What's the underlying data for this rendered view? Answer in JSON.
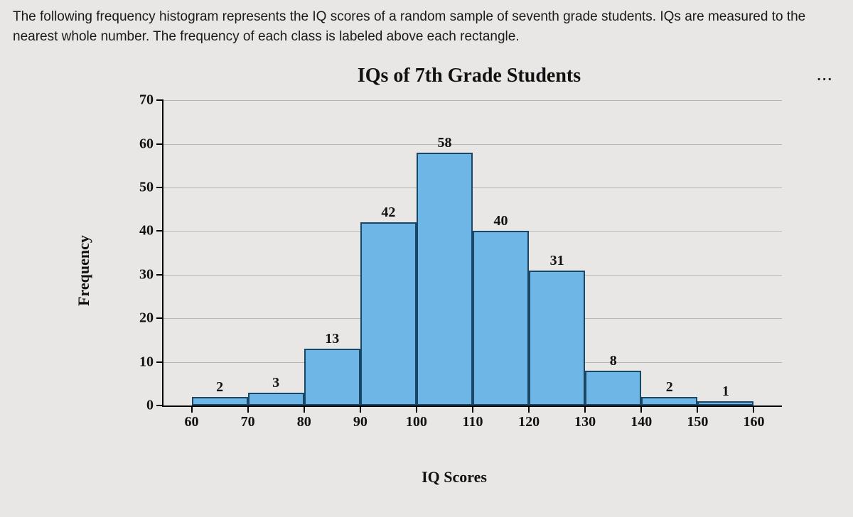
{
  "prompt": "The following frequency histogram represents the IQ scores of a random sample of seventh grade students. IQs are measured to the nearest whole number. The frequency of each class is labeled above each rectangle.",
  "ellipsis": "...",
  "chart": {
    "type": "histogram",
    "title": "IQs of 7th Grade Students",
    "title_fontsize": 28,
    "title_font": "serif-bold",
    "xlabel": "IQ Scores",
    "ylabel": "Frequency",
    "label_fontsize": 22,
    "ylim": [
      0,
      70
    ],
    "ytick_step": 10,
    "yticks": [
      0,
      10,
      20,
      30,
      40,
      50,
      60,
      70
    ],
    "xlim": [
      55,
      165
    ],
    "xticks": [
      60,
      70,
      80,
      90,
      100,
      110,
      120,
      130,
      140,
      150,
      160
    ],
    "class_width": 10,
    "bars": [
      {
        "lower": 60,
        "upper": 70,
        "midpoint": 65,
        "frequency": 2
      },
      {
        "lower": 70,
        "upper": 80,
        "midpoint": 75,
        "frequency": 3
      },
      {
        "lower": 80,
        "upper": 90,
        "midpoint": 85,
        "frequency": 13
      },
      {
        "lower": 90,
        "upper": 100,
        "midpoint": 95,
        "frequency": 42
      },
      {
        "lower": 100,
        "upper": 110,
        "midpoint": 105,
        "frequency": 58
      },
      {
        "lower": 110,
        "upper": 120,
        "midpoint": 115,
        "frequency": 40
      },
      {
        "lower": 120,
        "upper": 130,
        "midpoint": 125,
        "frequency": 31
      },
      {
        "lower": 130,
        "upper": 140,
        "midpoint": 135,
        "frequency": 8
      },
      {
        "lower": 140,
        "upper": 150,
        "midpoint": 145,
        "frequency": 2
      },
      {
        "lower": 150,
        "upper": 160,
        "midpoint": 155,
        "frequency": 1
      }
    ],
    "bar_fill": "#6eb6e6",
    "bar_border": "#1a4766",
    "bar_border_width": 2,
    "grid_color": "#b8b8b0",
    "axis_color": "#000000",
    "background_color": "#e8e7e5",
    "tick_fontsize": 20
  }
}
